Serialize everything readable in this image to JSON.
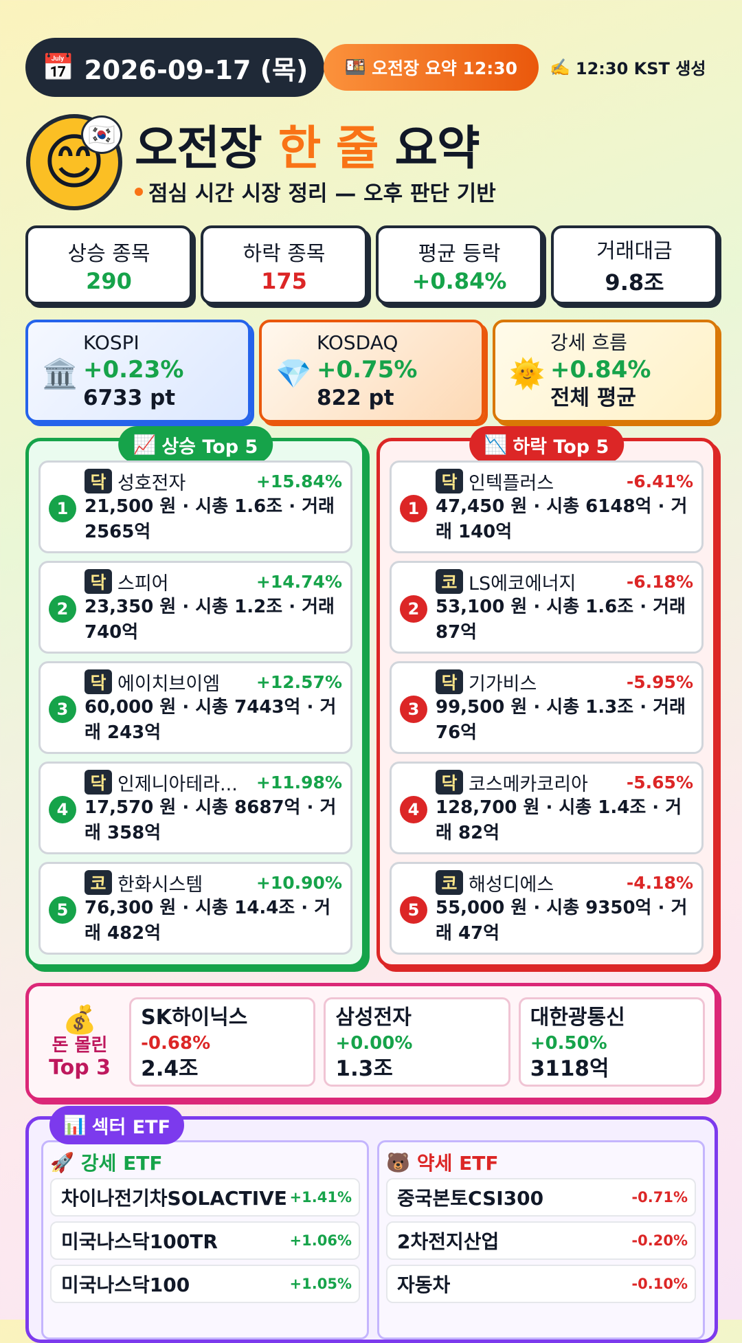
{
  "header": {
    "icon": "📅",
    "date": "2026-09-17 (목)",
    "badge_icon": "🍱",
    "badge": "오전장 요약 12:30",
    "generated_icon": "✍️",
    "generated": "12:30 KST 생성"
  },
  "hero": {
    "icon": "😊",
    "flag": "🇰🇷",
    "title": [
      "오전장",
      "한 줄",
      "요약"
    ],
    "subtitle": "점심 시간 시장 정리 — 오후 판단 기반"
  },
  "stats": [
    {
      "label": "상승 종목",
      "value": "290",
      "color": "#16a34a"
    },
    {
      "label": "하락 종목",
      "value": "175",
      "color": "#dc2626"
    },
    {
      "label": "평균 등락",
      "value": "+0.84%",
      "color": "#16a34a"
    },
    {
      "label": "거래대금",
      "value": "9.8조",
      "color": "#111827"
    }
  ],
  "indices": [
    {
      "icon": "🏛️",
      "name": "KOSPI",
      "change": "+0.23%",
      "level": "6733 pt"
    },
    {
      "icon": "💎",
      "name": "KOSDAQ",
      "change": "+0.75%",
      "level": "822 pt"
    },
    {
      "icon": "🌞",
      "name": "강세 흐름",
      "change": "+0.84%",
      "level": "전체 평균"
    }
  ],
  "gainers": {
    "icon": "📈",
    "title": "상승 Top 5",
    "items": [
      {
        "rank": "1",
        "market": "닥",
        "name": "성호전자",
        "change": "+15.84%",
        "detail": "21,500 원 · 시총 1.6조 · 거래 2565억"
      },
      {
        "rank": "2",
        "market": "닥",
        "name": "스피어",
        "change": "+14.74%",
        "detail": "23,350 원 · 시총 1.2조 · 거래 740억"
      },
      {
        "rank": "3",
        "market": "닥",
        "name": "에이치브이엠",
        "change": "+12.57%",
        "detail": "60,000 원 · 시총 7443억 · 거래 243억"
      },
      {
        "rank": "4",
        "market": "닥",
        "name": "인제니아테라...",
        "change": "+11.98%",
        "detail": "17,570 원 · 시총 8687억 · 거래 358억"
      },
      {
        "rank": "5",
        "market": "코",
        "name": "한화시스템",
        "change": "+10.90%",
        "detail": "76,300 원 · 시총 14.4조 · 거래 482억"
      }
    ]
  },
  "losers": {
    "icon": "📉",
    "title": "하락 Top 5",
    "items": [
      {
        "rank": "1",
        "market": "닥",
        "name": "인텍플러스",
        "change": "-6.41%",
        "detail": "47,450 원 · 시총 6148억 · 거래 140억"
      },
      {
        "rank": "2",
        "market": "코",
        "name": "LS에코에너지",
        "change": "-6.18%",
        "detail": "53,100 원 · 시총 1.6조 · 거래 87억"
      },
      {
        "rank": "3",
        "market": "닥",
        "name": "기가비스",
        "change": "-5.95%",
        "detail": "99,500 원 · 시총 1.3조 · 거래 76억"
      },
      {
        "rank": "4",
        "market": "닥",
        "name": "코스메카코리아",
        "change": "-5.65%",
        "detail": "128,700 원 · 시총 1.4조 · 거래 82억"
      },
      {
        "rank": "5",
        "market": "코",
        "name": "해성디에스",
        "change": "-4.18%",
        "detail": "55,000 원 · 시총 9350억 · 거래 47억"
      }
    ]
  },
  "money": {
    "icon": "💰",
    "label": [
      "돈 몰린",
      "Top 3"
    ],
    "items": [
      {
        "name": "SK하이닉스",
        "change": "-0.68%",
        "amount": "2.4조"
      },
      {
        "name": "삼성전자",
        "change": "+0.00%",
        "amount": "1.3조"
      },
      {
        "name": "대한광통신",
        "change": "+0.50%",
        "amount": "3118억"
      }
    ]
  },
  "etf": {
    "icon": "📊",
    "title": "섹터 ETF",
    "strong": {
      "icon": "🚀",
      "title": "강세 ETF",
      "items": [
        {
          "name": "차이나전기차SOLACTIVE",
          "change": "+1.41%"
        },
        {
          "name": "미국나스닥100TR",
          "change": "+1.06%"
        },
        {
          "name": "미국나스닥100",
          "change": "+1.05%"
        }
      ]
    },
    "weak": {
      "icon": "🐻",
      "title": "약세 ETF",
      "items": [
        {
          "name": "중국본토CSI300",
          "change": "-0.71%"
        },
        {
          "name": "2차전지산업",
          "change": "-0.20%"
        },
        {
          "name": "자동차",
          "change": "-0.10%"
        }
      ]
    }
  }
}
